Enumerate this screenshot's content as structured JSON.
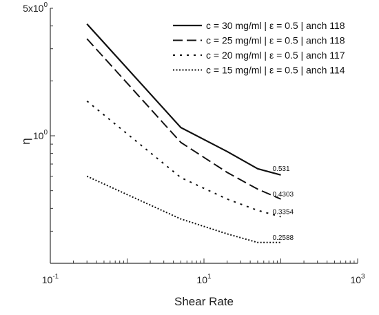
{
  "chart_data": {
    "type": "line",
    "xscale": "log",
    "yscale": "log",
    "xlim": [
      0.1,
      1000
    ],
    "ylim": [
      0.2,
      5
    ],
    "xlabel": "Shear Rate",
    "ylabel": "η",
    "x_ticks": [
      {
        "value": 0.1,
        "base": "10",
        "exp": "-1"
      },
      {
        "value": 10,
        "base": "10",
        "exp": "1"
      },
      {
        "value": 1000,
        "base": "10",
        "exp": "3"
      }
    ],
    "y_ticks": [
      {
        "value": 1,
        "base": "10",
        "exp": "0",
        "prefix": ""
      },
      {
        "value": 5,
        "base": "10",
        "exp": "0",
        "prefix": "5x"
      }
    ],
    "legend_position": "top-right",
    "series": [
      {
        "name": "c = 30 mg/ml | ε = 0.5 | anch 118",
        "style": "solid",
        "x": [
          0.3,
          5,
          20,
          50,
          100
        ],
        "y": [
          4.1,
          1.11,
          0.82,
          0.66,
          0.61
        ],
        "end_label": "0.531"
      },
      {
        "name": "c = 25 mg/ml | ε = 0.5 | anch 118",
        "style": "dashed",
        "x": [
          0.3,
          5,
          20,
          50,
          100
        ],
        "y": [
          3.4,
          0.92,
          0.63,
          0.51,
          0.45
        ],
        "end_label": "0.4303"
      },
      {
        "name": "c = 20 mg/ml | ε = 0.5 | anch 117",
        "style": "dotted",
        "x": [
          0.3,
          5,
          20,
          50,
          100
        ],
        "y": [
          1.55,
          0.59,
          0.45,
          0.39,
          0.36
        ],
        "end_label": "0.3354"
      },
      {
        "name": "c = 15 mg/ml | ε = 0.5 | anch 114",
        "style": "dense-dotted",
        "x": [
          0.3,
          5,
          20,
          50,
          100
        ],
        "y": [
          0.6,
          0.35,
          0.29,
          0.26,
          0.26
        ],
        "end_label": "0.2588"
      }
    ]
  }
}
